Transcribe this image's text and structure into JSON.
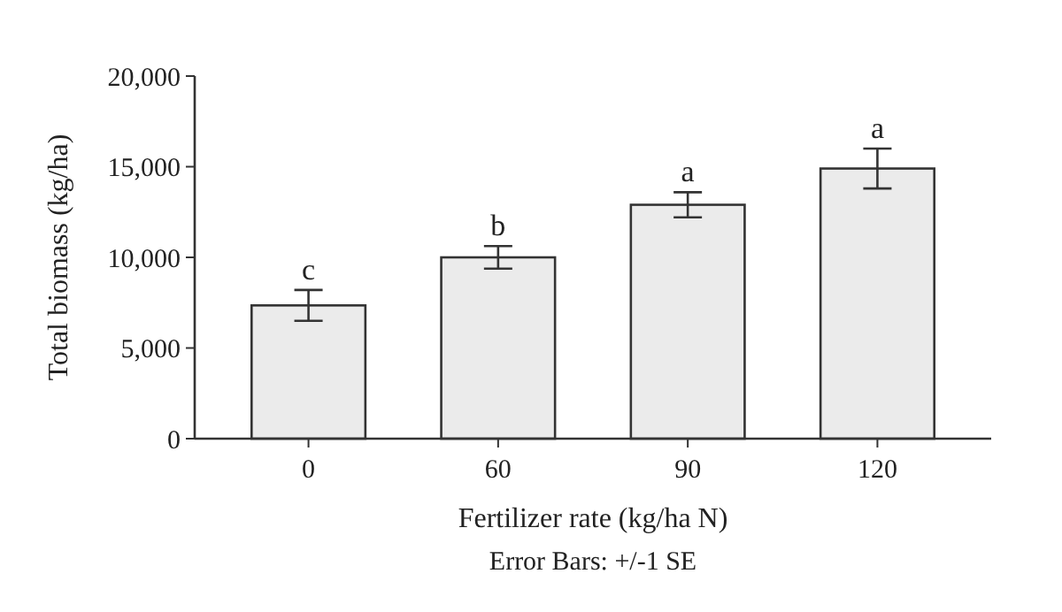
{
  "chart_data": {
    "type": "bar",
    "xlabel": "Fertilizer rate (kg/ha N)",
    "ylabel": "Total biomass (kg/ha)",
    "categories": [
      "0",
      "60",
      "90",
      "120"
    ],
    "values": [
      7350,
      10000,
      12900,
      14900
    ],
    "errors": [
      850,
      620,
      690,
      1100
    ],
    "color": "#ebebeb",
    "ylim": [
      0,
      20000
    ],
    "yticks": [
      {
        "value": 0,
        "label": "0"
      },
      {
        "value": 5000,
        "label": "5,000"
      },
      {
        "value": 10000,
        "label": "10,000"
      },
      {
        "value": 15000,
        "label": "15,000"
      },
      {
        "value": 20000,
        "label": "20,000"
      }
    ],
    "grid": false,
    "annotations": [
      {
        "text": "c",
        "x": "0",
        "y": 8200
      },
      {
        "text": "b",
        "x": "60",
        "y": 10620
      },
      {
        "text": "a",
        "x": "90",
        "y": 13590
      },
      {
        "text": "a",
        "x": "120",
        "y": 16000
      },
      "Error Bars: +/-1 SE"
    ]
  }
}
